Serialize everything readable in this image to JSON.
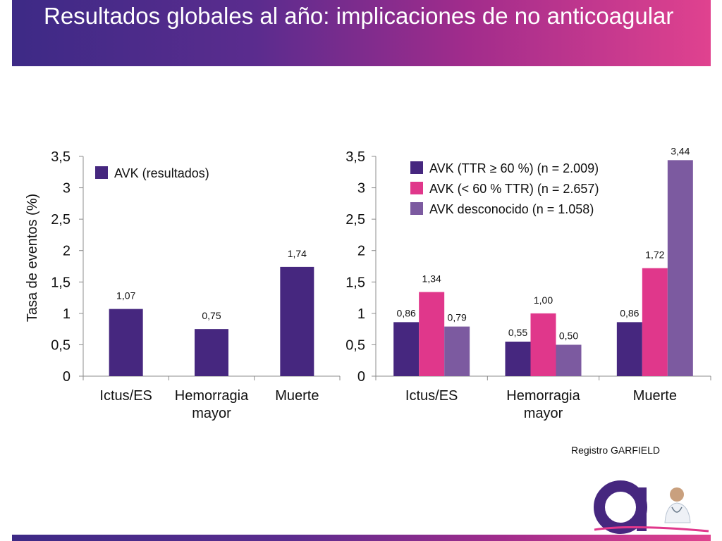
{
  "slide": {
    "title": "Resultados globales al año: implicaciones de no anticoagular",
    "source": "Registro GARFIELD"
  },
  "colors": {
    "dark_purple": "#46277f",
    "magenta": "#e0378b",
    "light_purple": "#7c5aa0",
    "axis": "#8c8c8c"
  },
  "chart_data": [
    {
      "type": "bar",
      "categories": [
        "Ictus/ES",
        "Hemorragia mayor",
        "Muerte"
      ],
      "series": [
        {
          "name": "AVK (resultados)",
          "values": [
            1.07,
            0.75,
            1.74
          ],
          "labels": [
            "1,07",
            "0,75",
            "1,74"
          ]
        }
      ],
      "ylabel": "Tasa de eventos (%)",
      "ylim": [
        0,
        3.5
      ],
      "yticks": [
        "0",
        "0,5",
        "1",
        "1,5",
        "2",
        "2,5",
        "3",
        "3,5"
      ],
      "legend": "top-left",
      "grid": false
    },
    {
      "type": "bar",
      "categories": [
        "Ictus/ES",
        "Hemorragia mayor",
        "Muerte"
      ],
      "series": [
        {
          "name": "AVK (TTR ≥ 60 %) (n = 2.009)",
          "values": [
            0.86,
            0.55,
            0.86
          ],
          "labels": [
            "0,86",
            "0,55",
            "0,86"
          ]
        },
        {
          "name": "AVK (< 60 % TTR) (n = 2.657)",
          "values": [
            1.34,
            1.0,
            1.72
          ],
          "labels": [
            "1,34",
            "1,00",
            "1,72"
          ]
        },
        {
          "name": "AVK desconocido (n = 1.058)",
          "values": [
            0.79,
            0.5,
            3.44
          ],
          "labels": [
            "0,79",
            "0,50",
            "3,44"
          ]
        }
      ],
      "ylim": [
        0,
        3.5
      ],
      "yticks": [
        "0",
        "0,5",
        "1",
        "1,5",
        "2",
        "2,5",
        "3",
        "3,5"
      ],
      "legend": "top-center",
      "grid": false
    }
  ]
}
